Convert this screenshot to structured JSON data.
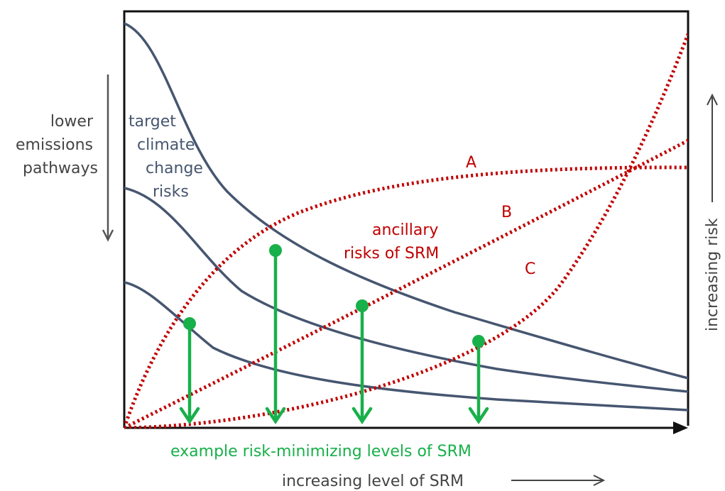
{
  "colors": {
    "frame": "#111111",
    "curve_blue": "#465670",
    "curve_red": "#c00000",
    "marker_green": "#18b04a",
    "label_gray": "#444444"
  },
  "left_arrow_label": [
    "lower",
    "emissions",
    "pathways"
  ],
  "target_label": [
    "target",
    "climate",
    "change",
    "risks"
  ],
  "ancillary_label": [
    "ancillary",
    "risks of SRM"
  ],
  "red_curve_labels": {
    "a": "A",
    "b": "B",
    "c": "C"
  },
  "example_label": "example risk-minimizing levels of SRM",
  "x_axis_label": "increasing level of SRM",
  "y_axis_label": "increasing risk"
}
